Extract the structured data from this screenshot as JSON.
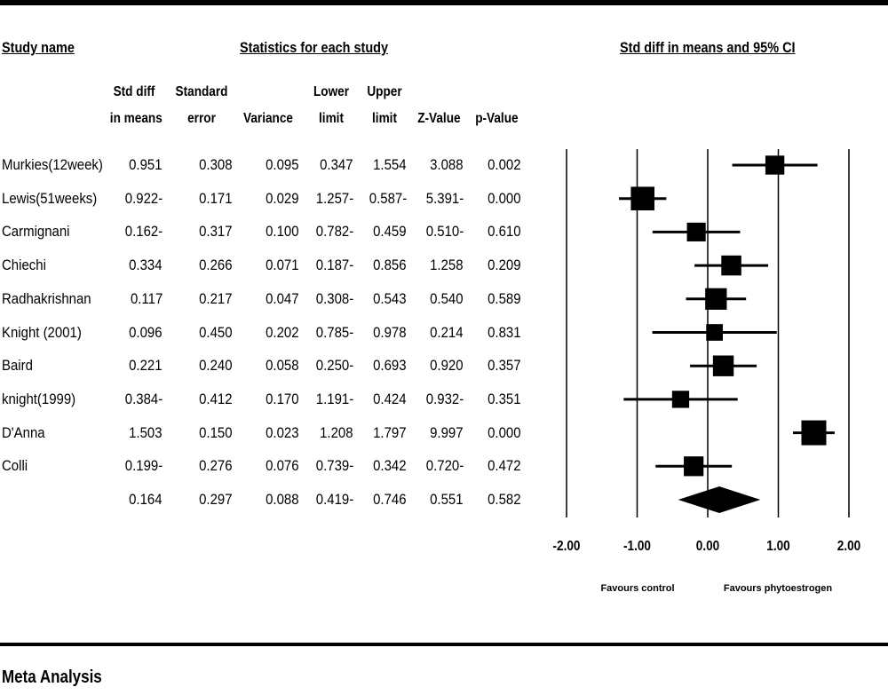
{
  "headers": {
    "study_name": "Study name",
    "statistics": "Statistics for each study",
    "plot_title": "Std diff in means and 95% CI"
  },
  "columns": [
    {
      "line1": "Std diff",
      "line2": "in means"
    },
    {
      "line1": "Standard",
      "line2": "error"
    },
    {
      "line1": "",
      "line2": "Variance"
    },
    {
      "line1": "Lower",
      "line2": "limit"
    },
    {
      "line1": "Upper",
      "line2": "limit"
    },
    {
      "line1": "",
      "line2": "Z-Value"
    },
    {
      "line1": "",
      "line2": "p-Value"
    }
  ],
  "rows": [
    {
      "name": "Murkies(12week)",
      "cells": [
        "0.951",
        "0.308",
        "0.095",
        "0.347",
        "1.554",
        "3.088",
        "0.002"
      ]
    },
    {
      "name": "Lewis(51weeks)",
      "cells": [
        "0.922-",
        "0.171",
        "0.029",
        "1.257-",
        "0.587-",
        "5.391-",
        "0.000"
      ]
    },
    {
      "name": "Carmignani",
      "cells": [
        "0.162-",
        "0.317",
        "0.100",
        "0.782-",
        "0.459",
        "0.510-",
        "0.610"
      ]
    },
    {
      "name": "Chiechi",
      "cells": [
        "0.334",
        "0.266",
        "0.071",
        "0.187-",
        "0.856",
        "1.258",
        "0.209"
      ]
    },
    {
      "name": "Radhakrishnan",
      "cells": [
        "0.117",
        "0.217",
        "0.047",
        "0.308-",
        "0.543",
        "0.540",
        "0.589"
      ]
    },
    {
      "name": "Knight (2001)",
      "cells": [
        "0.096",
        "0.450",
        "0.202",
        "0.785-",
        "0.978",
        "0.214",
        "0.831"
      ]
    },
    {
      "name": "Baird",
      "cells": [
        "0.221",
        "0.240",
        "0.058",
        "0.250-",
        "0.693",
        "0.920",
        "0.357"
      ]
    },
    {
      "name": "knight(1999)",
      "cells": [
        "0.384-",
        "0.412",
        "0.170",
        "1.191-",
        "0.424",
        "0.932-",
        "0.351"
      ]
    },
    {
      "name": "D'Anna",
      "cells": [
        "1.503",
        "0.150",
        "0.023",
        "1.208",
        "1.797",
        "9.997",
        "0.000"
      ]
    },
    {
      "name": "Colli",
      "cells": [
        "0.199-",
        "0.276",
        "0.076",
        "0.739-",
        "0.342",
        "0.720-",
        "0.472"
      ]
    },
    {
      "name": "",
      "cells": [
        "0.164",
        "0.297",
        "0.088",
        "0.419-",
        "0.746",
        "0.551",
        "0.582"
      ]
    }
  ],
  "footer": "Meta Analysis",
  "chart_data": {
    "type": "forest",
    "title": "Std diff in means and 95% CI",
    "xlim": [
      -2.0,
      2.0
    ],
    "x_ticks": [
      "-2.00",
      "-1.00",
      "0.00",
      "1.00",
      "2.00"
    ],
    "x_tick_values": [
      -2,
      -1,
      0,
      1,
      2
    ],
    "favours_left": "Favours control",
    "favours_right": "Favours phytoestrogen",
    "studies": [
      {
        "name": "Murkies(12week)",
        "estimate": 0.951,
        "lower": 0.347,
        "upper": 1.554,
        "se": 0.308
      },
      {
        "name": "Lewis(51weeks)",
        "estimate": -0.922,
        "lower": -1.257,
        "upper": -0.587,
        "se": 0.171
      },
      {
        "name": "Carmignani",
        "estimate": -0.162,
        "lower": -0.782,
        "upper": 0.459,
        "se": 0.317
      },
      {
        "name": "Chiechi",
        "estimate": 0.334,
        "lower": -0.187,
        "upper": 0.856,
        "se": 0.266
      },
      {
        "name": "Radhakrishnan",
        "estimate": 0.117,
        "lower": -0.308,
        "upper": 0.543,
        "se": 0.217
      },
      {
        "name": "Knight (2001)",
        "estimate": 0.096,
        "lower": -0.785,
        "upper": 0.978,
        "se": 0.45
      },
      {
        "name": "Baird",
        "estimate": 0.221,
        "lower": -0.25,
        "upper": 0.693,
        "se": 0.24
      },
      {
        "name": "knight(1999)",
        "estimate": -0.384,
        "lower": -1.191,
        "upper": 0.424,
        "se": 0.412
      },
      {
        "name": "D'Anna",
        "estimate": 1.503,
        "lower": 1.208,
        "upper": 1.797,
        "se": 0.15
      },
      {
        "name": "Colli",
        "estimate": -0.199,
        "lower": -0.739,
        "upper": 0.342,
        "se": 0.276
      }
    ],
    "summary": {
      "estimate": 0.164,
      "lower": -0.419,
      "upper": 0.746
    }
  }
}
